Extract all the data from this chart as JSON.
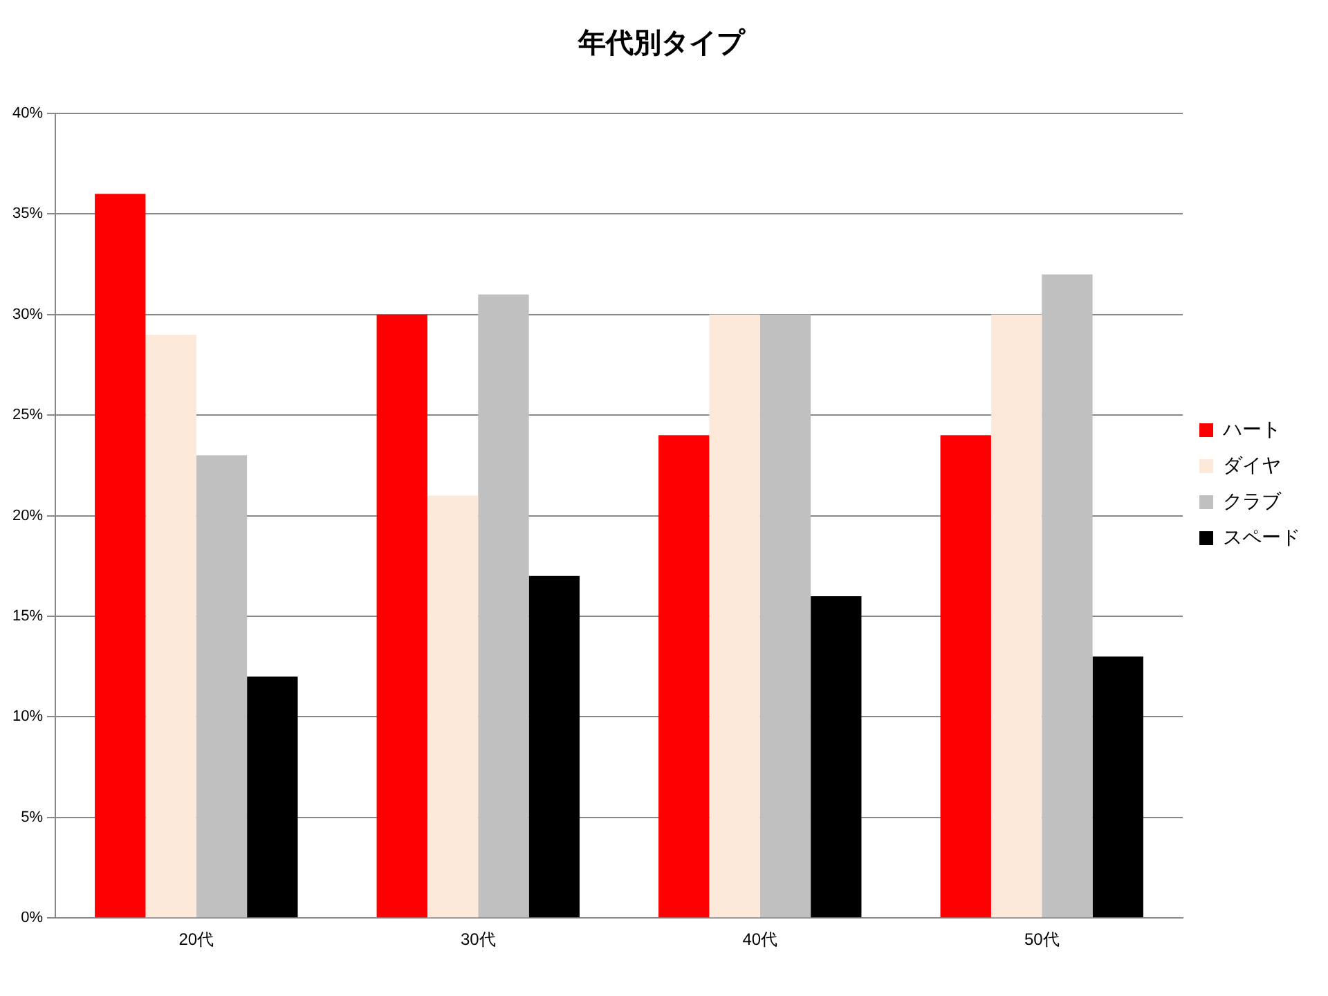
{
  "chart_data": {
    "type": "bar",
    "title": "年代別タイプ",
    "categories": [
      "20代",
      "30代",
      "40代",
      "50代"
    ],
    "series": [
      {
        "name": "ハート",
        "color": "#ff0000",
        "values": [
          36,
          30,
          24,
          24
        ]
      },
      {
        "name": "ダイヤ",
        "color": "#fde9d9",
        "values": [
          29,
          21,
          30,
          30
        ]
      },
      {
        "name": "クラブ",
        "color": "#c0c0c0",
        "values": [
          23,
          31,
          30,
          32
        ]
      },
      {
        "name": "スペード",
        "color": "#000000",
        "values": [
          12,
          17,
          16,
          13
        ]
      }
    ],
    "ylim": [
      0,
      40
    ],
    "yticks": [
      {
        "value": 0,
        "label": "0%"
      },
      {
        "value": 5,
        "label": "5%"
      },
      {
        "value": 10,
        "label": "10%"
      },
      {
        "value": 15,
        "label": "15%"
      },
      {
        "value": 20,
        "label": "20%"
      },
      {
        "value": 25,
        "label": "25%"
      },
      {
        "value": 30,
        "label": "30%"
      },
      {
        "value": 35,
        "label": "35%"
      },
      {
        "value": 40,
        "label": "40%"
      }
    ],
    "grid": "y",
    "legend": "right"
  }
}
